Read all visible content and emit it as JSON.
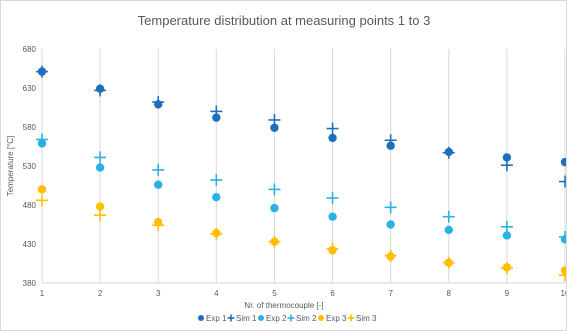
{
  "chart_data": {
    "type": "scatter",
    "title": "Temperature distribution at measuring points 1 to 3",
    "xlabel": "Nr. of thermocouple [-]",
    "ylabel": "Temperature [°C]",
    "xlim": [
      1,
      10
    ],
    "ylim": [
      380,
      680
    ],
    "x_ticks": [
      1,
      2,
      3,
      4,
      5,
      6,
      7,
      8,
      9,
      10
    ],
    "y_ticks": [
      380,
      430,
      480,
      530,
      580,
      630,
      680
    ],
    "grid": "vertical",
    "legend_position": "bottom",
    "x": [
      1,
      2,
      3,
      4,
      5,
      6,
      7,
      8,
      9,
      10
    ],
    "series": [
      {
        "name": "Exp 1",
        "marker": "circle",
        "color": "#1f6fbf",
        "values": [
          651,
          629,
          609,
          592,
          579,
          566,
          556,
          548,
          541,
          535
        ]
      },
      {
        "name": "Sim 1",
        "marker": "plus",
        "color": "#1f6fbf",
        "values": [
          651,
          627,
          612,
          600,
          589,
          578,
          563,
          547,
          531,
          510
        ]
      },
      {
        "name": "Exp 2",
        "marker": "circle",
        "color": "#29b1e6",
        "values": [
          559,
          528,
          506,
          490,
          476,
          465,
          455,
          448,
          441,
          436
        ]
      },
      {
        "name": "Sim 2",
        "marker": "plus",
        "color": "#29b1e6",
        "values": [
          564,
          541,
          525,
          512,
          500,
          489,
          477,
          465,
          452,
          439
        ]
      },
      {
        "name": "Exp 3",
        "marker": "circle",
        "color": "#ffbf00",
        "values": [
          500,
          478,
          458,
          444,
          433,
          422,
          414,
          406,
          400,
          396
        ]
      },
      {
        "name": "Sim 3",
        "marker": "plus",
        "color": "#ffbf00",
        "values": [
          486,
          467,
          454,
          443,
          433,
          424,
          415,
          406,
          399,
          390
        ]
      }
    ]
  }
}
